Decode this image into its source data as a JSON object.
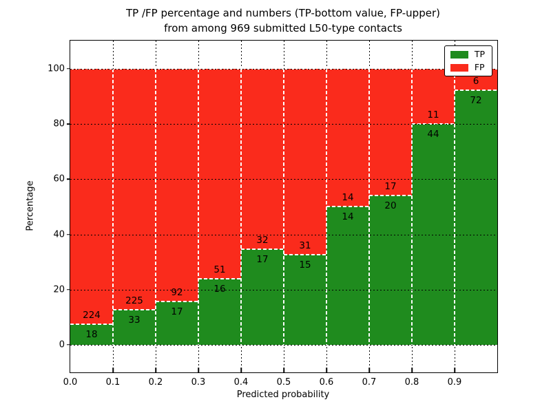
{
  "chart_data": {
    "type": "bar",
    "stacked": true,
    "normalized_to_percent": true,
    "title": "TP /FP percentage and numbers (TP-bottom value, FP-upper)",
    "subtitle": "from among 969 submitted L50-type contacts",
    "total_contacts": 969,
    "xlabel": "Predicted probability",
    "ylabel": "Percentage",
    "x_ticks": [
      "0.0",
      "0.1",
      "0.2",
      "0.3",
      "0.4",
      "0.5",
      "0.6",
      "0.7",
      "0.8",
      "0.9"
    ],
    "y_ticks": [
      0,
      20,
      40,
      60,
      80,
      100
    ],
    "xlim": [
      0.0,
      1.0
    ],
    "ylim": [
      -10,
      110
    ],
    "grid": true,
    "bin_edges": [
      0.0,
      0.1,
      0.2,
      0.3,
      0.4,
      0.5,
      0.6,
      0.7,
      0.8,
      0.9,
      1.0
    ],
    "series": [
      {
        "name": "TP",
        "color": "#1f8b1e",
        "counts": [
          18,
          33,
          17,
          16,
          17,
          15,
          14,
          20,
          44,
          72
        ]
      },
      {
        "name": "FP",
        "color": "#fa2b1c",
        "counts": [
          224,
          225,
          92,
          51,
          32,
          31,
          14,
          17,
          11,
          6
        ]
      }
    ],
    "tp_percent": [
      7.4,
      12.8,
      15.6,
      23.9,
      34.7,
      32.6,
      50.0,
      54.1,
      80.0,
      92.3
    ],
    "legend": {
      "position": "upper right",
      "entries": [
        "TP",
        "FP"
      ]
    }
  }
}
